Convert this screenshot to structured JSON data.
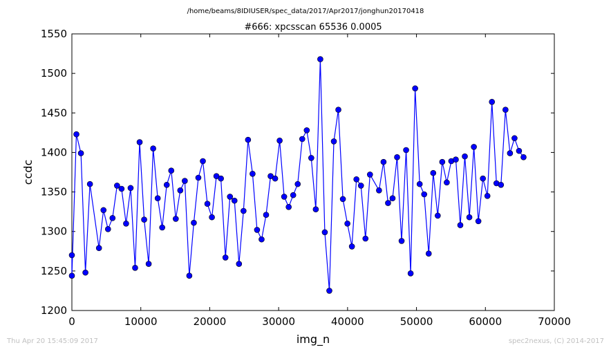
{
  "header": {
    "path": "/home/beams/8IDIUSER/spec_data/2017/Apr2017/jonghun20170418"
  },
  "footer": {
    "timestamp": "Thu Apr 20 15:45:09 2017",
    "credit": "spec2nexus, (C) 2014-2017"
  },
  "chart_data": {
    "type": "line",
    "title": "#666: xpcsscan 65536 0.0005",
    "xlabel": "img_n",
    "ylabel": "ccdc",
    "xlim": [
      0,
      70000
    ],
    "ylim": [
      1200,
      1550
    ],
    "xticks": [
      0,
      10000,
      20000,
      30000,
      40000,
      50000,
      60000,
      70000
    ],
    "yticks": [
      1200,
      1250,
      1300,
      1350,
      1400,
      1450,
      1500,
      1550
    ],
    "grid": false,
    "color": "#0000ff",
    "marker": "circle",
    "series": [
      {
        "x": [
          0,
          0,
          655,
          1311,
          1966,
          2621,
          3932,
          4588,
          5243,
          5898,
          6554,
          7209,
          7864,
          8520,
          9175,
          9830,
          10486,
          11141,
          11796,
          12452,
          13107,
          13762,
          14418,
          15073,
          15728,
          16384,
          17039,
          17694,
          18350,
          19005,
          19660,
          20316,
          20971,
          21626,
          22282,
          22937,
          23592,
          24248,
          24903,
          25559,
          26214,
          26869,
          27525,
          28180,
          28835,
          29491,
          30146,
          30801,
          31457,
          32112,
          32767,
          33423,
          34078,
          34733,
          35389,
          36044,
          36699,
          37355,
          38010,
          38665,
          39321,
          39976,
          40631,
          41287,
          41942,
          42598,
          43253,
          44564,
          45219,
          45875,
          46530,
          47185,
          47841,
          48496,
          49151,
          49807,
          50462,
          51117,
          51773,
          52428,
          53083,
          53739,
          54394,
          55049,
          55705,
          56360,
          57015,
          57671,
          58326,
          58981,
          59637,
          60292,
          60947,
          61603,
          62258,
          62914,
          63569,
          64224,
          64880,
          65535
        ],
        "y": [
          1270,
          1244,
          1423,
          1399,
          1248,
          1360,
          1279,
          1327,
          1303,
          1317,
          1358,
          1354,
          1310,
          1355,
          1254,
          1413,
          1315,
          1259,
          1405,
          1342,
          1305,
          1359,
          1377,
          1316,
          1352,
          1364,
          1244,
          1311,
          1368,
          1389,
          1335,
          1318,
          1370,
          1367,
          1267,
          1344,
          1339,
          1259,
          1326,
          1416,
          1373,
          1302,
          1290,
          1321,
          1370,
          1367,
          1415,
          1344,
          1331,
          1346,
          1360,
          1417,
          1428,
          1393,
          1328,
          1518,
          1299,
          1225,
          1414,
          1454,
          1341,
          1310,
          1281,
          1366,
          1358,
          1291,
          1372,
          1352,
          1388,
          1336,
          1342,
          1394,
          1288,
          1403,
          1247,
          1481,
          1360,
          1347,
          1272,
          1374,
          1320,
          1388,
          1362,
          1389,
          1391,
          1308,
          1395,
          1318,
          1407,
          1313,
          1367,
          1345,
          1464,
          1361,
          1359,
          1454,
          1399,
          1418,
          1402,
          1394
        ]
      }
    ]
  }
}
